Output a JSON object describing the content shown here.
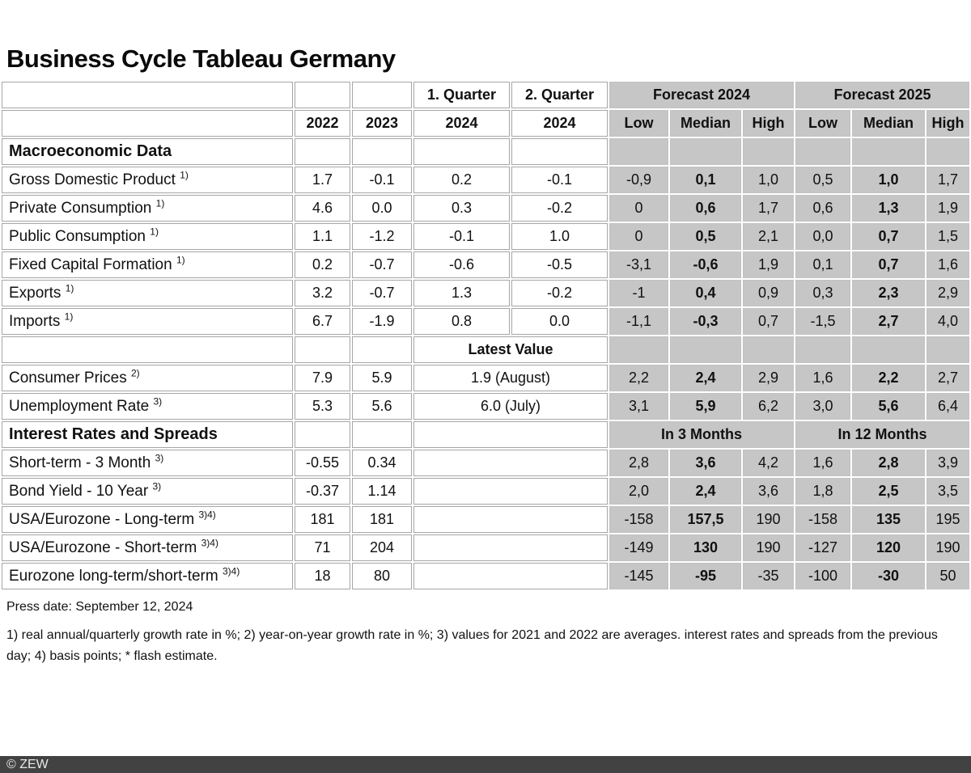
{
  "chart_data": {
    "type": "table",
    "title": "Business Cycle Tableau Germany",
    "header": {
      "col_year1": "2022",
      "col_year2": "2023",
      "quarter1_label": "1. Quarter",
      "quarter2_label": "2. Quarter",
      "quarter1_year": "2024",
      "quarter2_year": "2024",
      "forecast_2024_label": "Forecast 2024",
      "forecast_2025_label": "Forecast 2025",
      "low": "Low",
      "median": "Median",
      "high": "High"
    },
    "rows": [
      {
        "type": "section",
        "label": "Macroeconomic Data"
      },
      {
        "type": "data",
        "label": "Gross Domestic Product",
        "sup": "1)",
        "y2022": "1.7",
        "y2023": "-0.1",
        "q1": "0.2",
        "q2": "-0.1",
        "forecast": [
          "-0,9",
          "0,1",
          "1,0",
          "0,5",
          "1,0",
          "1,7"
        ]
      },
      {
        "type": "data",
        "label": "Private Consumption",
        "sup": "1)",
        "y2022": "4.6",
        "y2023": "0.0",
        "q1": "0.3",
        "q2": "-0.2",
        "forecast": [
          "0",
          "0,6",
          "1,7",
          "0,6",
          "1,3",
          "1,9"
        ]
      },
      {
        "type": "data",
        "label": "Public Consumption",
        "sup": "1)",
        "y2022": "1.1",
        "y2023": "-1.2",
        "q1": "-0.1",
        "q2": "1.0",
        "forecast": [
          "0",
          "0,5",
          "2,1",
          "0,0",
          "0,7",
          "1,5"
        ]
      },
      {
        "type": "data",
        "label": "Fixed Capital Formation",
        "sup": "1)",
        "y2022": "0.2",
        "y2023": "-0.7",
        "q1": "-0.6",
        "q2": "-0.5",
        "forecast": [
          "-3,1",
          "-0,6",
          "1,9",
          "0,1",
          "0,7",
          "1,6"
        ]
      },
      {
        "type": "data",
        "label": "Exports",
        "sup": "1)",
        "y2022": "3.2",
        "y2023": "-0.7",
        "q1": "1.3",
        "q2": "-0.2",
        "forecast": [
          "-1",
          "0,4",
          "0,9",
          "0,3",
          "2,3",
          "2,9"
        ]
      },
      {
        "type": "data",
        "label": "Imports",
        "sup": "1)",
        "y2022": "6.7",
        "y2023": "-1.9",
        "q1": "0.8",
        "q2": "0.0",
        "forecast": [
          "-1,1",
          "-0,3",
          "0,7",
          "-1,5",
          "2,7",
          "4,0"
        ]
      },
      {
        "type": "merged-header",
        "label": "Latest Value"
      },
      {
        "type": "data-latest",
        "label": "Consumer Prices",
        "sup": "2)",
        "y2022": "7.9",
        "y2023": "5.9",
        "latest": "1.9 (August)",
        "forecast": [
          "2,2",
          "2,4",
          "2,9",
          "1,6",
          "2,2",
          "2,7"
        ]
      },
      {
        "type": "data-latest",
        "label": "Unemployment Rate",
        "sup": "3)",
        "y2022": "5.3",
        "y2023": "5.6",
        "latest": "6.0 (July)",
        "forecast": [
          "3,1",
          "5,9",
          "6,2",
          "3,0",
          "5,6",
          "6,4"
        ]
      },
      {
        "type": "section-spans",
        "label": "Interest Rates and Spreads",
        "span1": "In 3 Months",
        "span2": "In 12 Months"
      },
      {
        "type": "data-rates",
        "label": "Short-term - 3 Month",
        "sup": "3)",
        "y2022": "-0.55",
        "y2023": "0.34",
        "forecast": [
          "2,8",
          "3,6",
          "4,2",
          "1,6",
          "2,8",
          "3,9"
        ]
      },
      {
        "type": "data-rates",
        "label": "Bond Yield - 10 Year",
        "sup": "3)",
        "y2022": "-0.37",
        "y2023": "1.14",
        "forecast": [
          "2,0",
          "2,4",
          "3,6",
          "1,8",
          "2,5",
          "3,5"
        ]
      },
      {
        "type": "data-rates",
        "label": "USA/Eurozone - Long-term",
        "sup": "3)4)",
        "y2022": "181",
        "y2023": "181",
        "forecast": [
          "-158",
          "157,5",
          "190",
          "-158",
          "135",
          "195"
        ]
      },
      {
        "type": "data-rates",
        "label": "USA/Eurozone - Short-term",
        "sup": "3)4)",
        "y2022": "71",
        "y2023": "204",
        "forecast": [
          "-149",
          "130",
          "190",
          "-127",
          "120",
          "190"
        ]
      },
      {
        "type": "data-rates",
        "label": "Eurozone long-term/short-term",
        "sup": "3)4)",
        "y2022": "18",
        "y2023": "80",
        "forecast": [
          "-145",
          "-95",
          "-35",
          "-100",
          "-30",
          "50"
        ]
      }
    ]
  },
  "footer": {
    "press_date": "Press date: September 12, 2024",
    "footnotes": "1) real annual/quarterly growth rate in %; 2) year-on-year growth rate in %; 3) values for 2021 and 2022 are averages. interest rates and spreads from the previous day; 4) basis points; * flash estimate.",
    "copyright": "© ZEW"
  },
  "colors": {
    "cell_gray": "#c6c6c6",
    "grid_line": "#a6a6a6",
    "footer_bar": "#424242",
    "footer_text": "#e8e8e8"
  }
}
